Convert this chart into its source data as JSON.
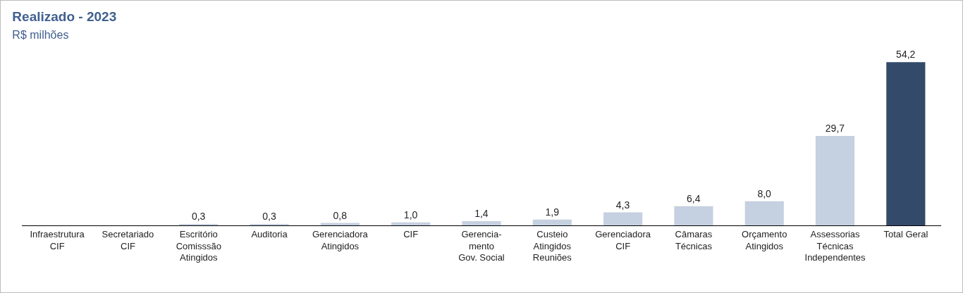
{
  "chart_data": {
    "type": "bar",
    "title": "Realizado - 2023",
    "subtitle": "R$ milhões",
    "categories": [
      "Infraestrutura\nCIF",
      "Secretariado\nCIF",
      "Escritório\nComisssão\nAtingidos",
      "Auditoria",
      "Gerenciadora\nAtingidos",
      "CIF",
      "Gerencia-\nmento\nGov. Social",
      "Custeio\nAtingidos\nReuniões",
      "Gerenciadora\nCIF",
      "Câmaras\nTécnicas",
      "Orçamento\nAtingidos",
      "Assessorias\nTécnicas\nIndependentes",
      "Total Geral"
    ],
    "values": [
      null,
      null,
      0.3,
      0.3,
      0.8,
      1.0,
      1.4,
      1.9,
      4.3,
      6.4,
      8.0,
      29.7,
      54.2
    ],
    "value_labels": [
      null,
      null,
      "0,3",
      "0,3",
      "0,8",
      "1,0",
      "1,4",
      "1,9",
      "4,3",
      "6,4",
      "8,0",
      "29,7",
      "54,2"
    ],
    "colors": [
      "#c5d0e0",
      "#c5d0e0",
      "#c5d0e0",
      "#c5d0e0",
      "#c5d0e0",
      "#c5d0e0",
      "#c5d0e0",
      "#c5d0e0",
      "#c5d0e0",
      "#c5d0e0",
      "#c5d0e0",
      "#c5d0e0",
      "#344a6a"
    ],
    "grid": false
  }
}
